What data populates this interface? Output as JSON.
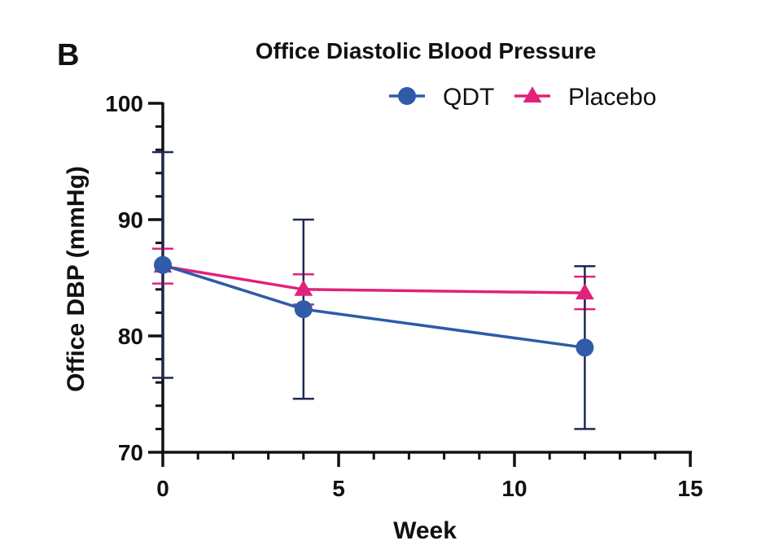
{
  "panel_label": "B",
  "chart_data": {
    "type": "line",
    "title": "Office Diastolic Blood Pressure",
    "xlabel": "Week",
    "ylabel": "Office DBP (mmHg)",
    "xlim": [
      0,
      15
    ],
    "ylim": [
      70,
      100
    ],
    "x_ticks": [
      0,
      5,
      10,
      15
    ],
    "y_ticks": [
      70,
      80,
      90,
      100
    ],
    "x_minor_step": 1,
    "y_minor_step": 2,
    "grid": false,
    "legend_position": "top-right",
    "series": [
      {
        "name": "QDT",
        "color": "#2F5BA8",
        "marker": "circle",
        "x": [
          0,
          4,
          12
        ],
        "y": [
          86.1,
          82.3,
          79.0
        ],
        "error": [
          9.7,
          7.7,
          7.0
        ],
        "error_color": "#1F2A55"
      },
      {
        "name": "Placebo",
        "color": "#E0227A",
        "marker": "triangle",
        "x": [
          0,
          4,
          12
        ],
        "y": [
          86.0,
          84.0,
          83.7
        ],
        "error": [
          1.5,
          1.3,
          1.4
        ],
        "error_color": "#E0227A"
      }
    ]
  }
}
